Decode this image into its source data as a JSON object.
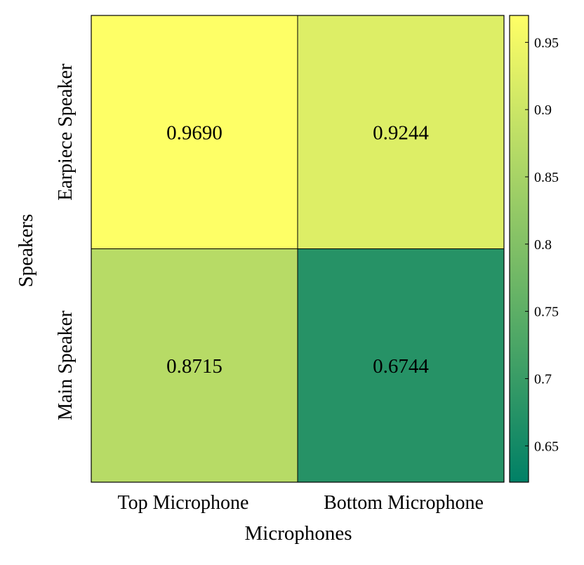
{
  "chart_data": {
    "type": "heatmap",
    "xlabel": "Microphones",
    "ylabel": "Speakers",
    "x_categories": [
      "Top Microphone",
      "Bottom Microphone"
    ],
    "y_categories": [
      "Earpiece Speaker",
      "Main Speaker"
    ],
    "values": [
      [
        0.969,
        0.9244
      ],
      [
        0.8715,
        0.6744
      ]
    ],
    "cell_labels": [
      [
        "0.9690",
        "0.9244"
      ],
      [
        "0.8715",
        "0.6744"
      ]
    ],
    "colorbar": {
      "range": [
        0.623,
        0.97
      ],
      "ticks": [
        0.65,
        0.7,
        0.75,
        0.8,
        0.85,
        0.9,
        0.95
      ],
      "tick_labels": [
        "0.65",
        "0.7",
        "0.75",
        "0.8",
        "0.85",
        "0.9",
        "0.95"
      ],
      "colormap": "summer"
    },
    "grid": false
  }
}
